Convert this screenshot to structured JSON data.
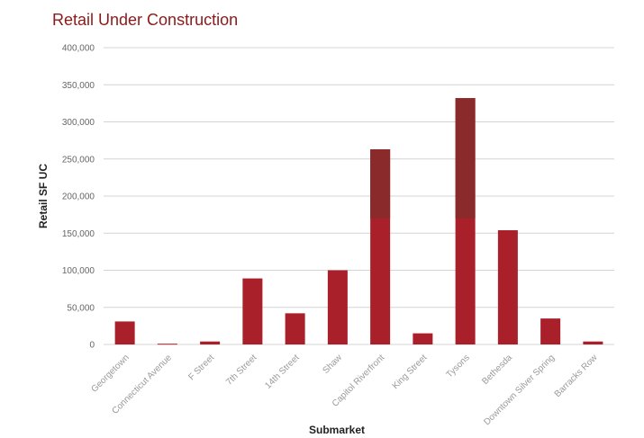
{
  "chart_data": {
    "type": "bar",
    "title": "Retail Under Construction",
    "xlabel": "Submarket",
    "ylabel": "Retail SF UC",
    "categories": [
      "Georgetown",
      "Connecticut Avenue",
      "F Street",
      "7th Street",
      "14th Street",
      "Shaw",
      "Capitol Riverfront",
      "King Street",
      "Tysons",
      "Bethesda",
      "Downtown Silver Spring",
      "Barracks Row"
    ],
    "values": [
      31000,
      1000,
      4000,
      89000,
      42000,
      100000,
      263000,
      15000,
      332000,
      154000,
      35000,
      4000
    ],
    "ylim": [
      0,
      400000
    ],
    "yticks": [
      0,
      50000,
      100000,
      150000,
      200000,
      250000,
      300000,
      350000,
      400000
    ],
    "ytick_labels": [
      "0",
      "50,000",
      "100,000",
      "150,000",
      "200,000",
      "250,000",
      "300,000",
      "350,000",
      "400,000"
    ],
    "grid": true,
    "colors": {
      "bar": "#a91f2a",
      "bar_upper": "#8a2a2a",
      "title": "#8b1a1a",
      "grid": "#d4d4d4"
    }
  }
}
